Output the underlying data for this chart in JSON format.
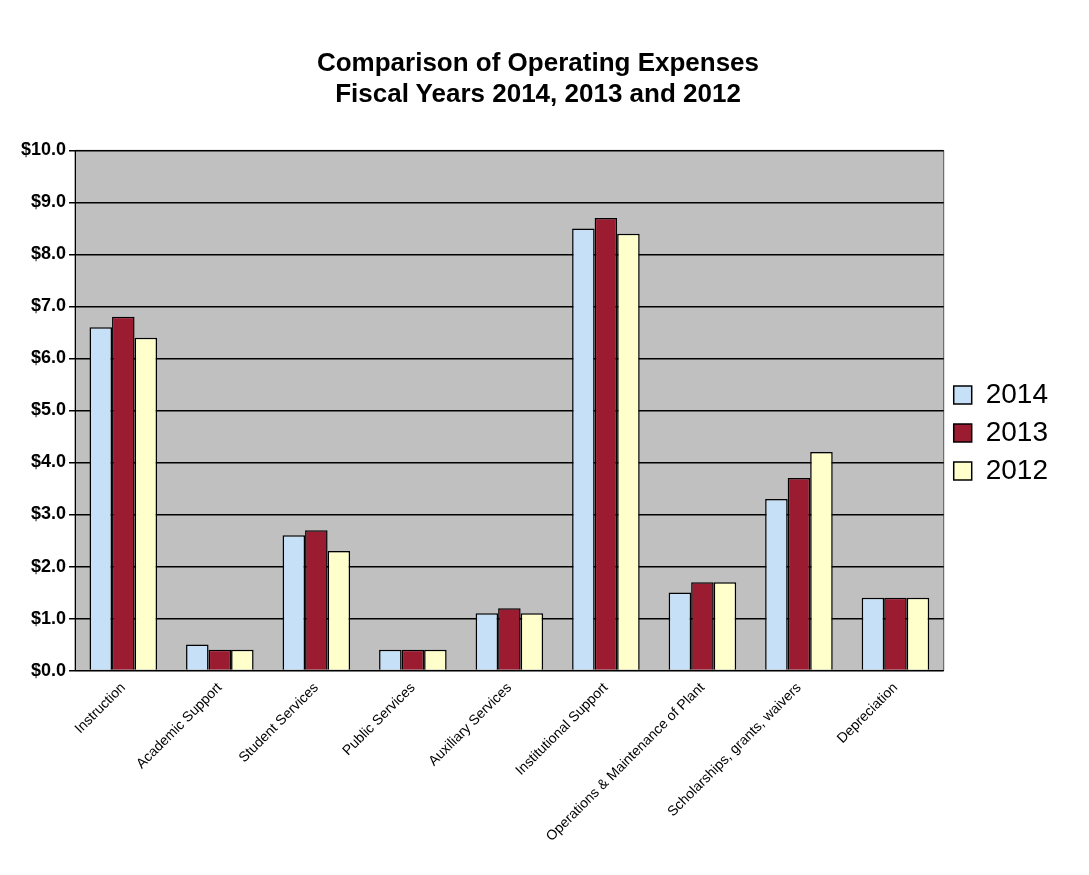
{
  "chart_data": {
    "type": "bar",
    "title": "Comparison of Operating Expenses\nFiscal Years 2014, 2013 and 2012",
    "categories": [
      "Instruction",
      "Academic Support",
      "Student Services",
      "Public Services",
      "Auxiliary Services",
      "Institutional Support",
      "Operations & Maintenance of Plant",
      "Scholarships, grants, waivers",
      "Depreciation"
    ],
    "series": [
      {
        "name": "2014",
        "color": "#c6e0f8",
        "values": [
          6.6,
          0.5,
          2.6,
          0.4,
          1.1,
          8.5,
          1.5,
          3.3,
          1.4
        ]
      },
      {
        "name": "2013",
        "color": "#9b1b30",
        "values": [
          6.8,
          0.4,
          2.7,
          0.4,
          1.2,
          8.7,
          1.7,
          3.7,
          1.4
        ]
      },
      {
        "name": "2012",
        "color": "#ffffcc",
        "values": [
          6.4,
          0.4,
          2.3,
          0.4,
          1.1,
          8.4,
          1.7,
          4.2,
          1.4
        ]
      }
    ],
    "ylim": [
      0,
      10
    ],
    "yticks": [
      {
        "value": 0,
        "label": "$0.0"
      },
      {
        "value": 1,
        "label": "$1.0"
      },
      {
        "value": 2,
        "label": "$2.0"
      },
      {
        "value": 3,
        "label": "$3.0"
      },
      {
        "value": 4,
        "label": "$4.0"
      },
      {
        "value": 5,
        "label": "$5.0"
      },
      {
        "value": 6,
        "label": "$6.0"
      },
      {
        "value": 7,
        "label": "$7.0"
      },
      {
        "value": 8,
        "label": "$8.0"
      },
      {
        "value": 9,
        "label": "$9.0"
      },
      {
        "value": 10,
        "label": "$10.0"
      }
    ],
    "grid": "y",
    "legend": "right"
  }
}
